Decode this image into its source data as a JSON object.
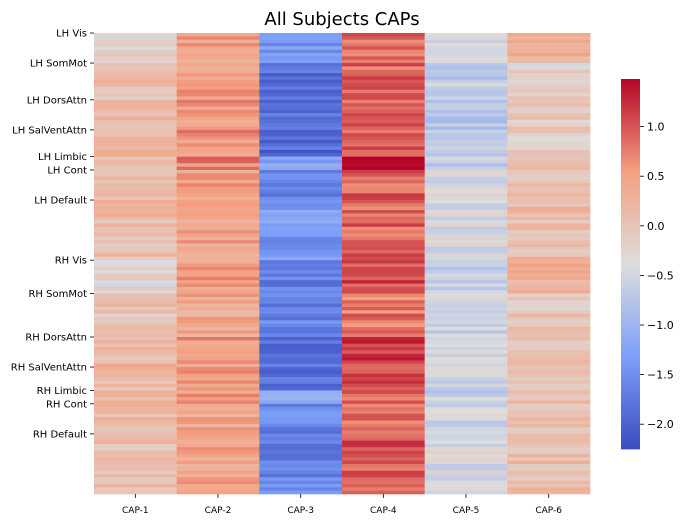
{
  "chart_data": {
    "type": "heatmap",
    "title": "All Subjects CAPs",
    "xlabel": "",
    "ylabel": "",
    "columns": [
      "CAP-1",
      "CAP-2",
      "CAP-3",
      "CAP-4",
      "CAP-5",
      "CAP-6"
    ],
    "row_groups": [
      {
        "label": "LH Vis",
        "start_row": 0,
        "values": [
          -0.3,
          0.5,
          -1.4,
          0.8,
          -0.45,
          0.3
        ]
      },
      {
        "label": "LH SomMot",
        "start_row": 9,
        "values": [
          0.1,
          0.5,
          -1.8,
          0.9,
          -0.7,
          -0.2
        ]
      },
      {
        "label": "LH DorsAttn",
        "start_row": 20,
        "values": [
          0.2,
          0.6,
          -1.9,
          1.0,
          -0.7,
          -0.1
        ]
      },
      {
        "label": "LH SalVentAttn",
        "start_row": 29,
        "values": [
          0.15,
          0.6,
          -1.9,
          0.9,
          -0.6,
          -0.2
        ]
      },
      {
        "label": "LH Limbic",
        "start_row": 37,
        "values": [
          0.1,
          0.7,
          -1.3,
          1.3,
          -0.6,
          0.0
        ]
      },
      {
        "label": "LH Cont",
        "start_row": 41,
        "values": [
          0.1,
          0.5,
          -1.6,
          0.9,
          -0.4,
          0.05
        ]
      },
      {
        "label": "LH Default",
        "start_row": 50,
        "values": [
          0.1,
          0.45,
          -1.4,
          0.9,
          -0.4,
          0.1
        ]
      },
      {
        "label": "RH Vis",
        "start_row": 68,
        "values": [
          -0.3,
          0.5,
          -1.7,
          1.1,
          -0.6,
          0.3
        ]
      },
      {
        "label": "RH SomMot",
        "start_row": 78,
        "values": [
          0.0,
          0.4,
          -1.6,
          0.8,
          -0.55,
          0.0
        ]
      },
      {
        "label": "RH DorsAttn",
        "start_row": 91,
        "values": [
          0.2,
          0.6,
          -1.9,
          1.1,
          -0.6,
          -0.05
        ]
      },
      {
        "label": "RH SalVentAttn",
        "start_row": 100,
        "values": [
          0.15,
          0.6,
          -1.9,
          1.0,
          -0.55,
          -0.1
        ]
      },
      {
        "label": "RH Limbic",
        "start_row": 107,
        "values": [
          0.1,
          0.6,
          -1.2,
          0.9,
          -0.6,
          0.05
        ]
      },
      {
        "label": "RH Cont",
        "start_row": 111,
        "values": [
          0.1,
          0.45,
          -1.6,
          0.9,
          -0.45,
          0.05
        ]
      },
      {
        "label": "RH Default",
        "start_row": 120,
        "values": [
          0.1,
          0.45,
          -1.6,
          1.0,
          -0.4,
          0.1
        ]
      }
    ],
    "total_rows": 138,
    "colorbar": {
      "colormap": "coolwarm",
      "vmin": -2.25,
      "vmax": 1.48,
      "ticks": [
        1.0,
        0.5,
        0.0,
        -0.5,
        -1.0,
        -1.5,
        -2.0
      ],
      "tick_labels": [
        "1.0",
        "0.5",
        "0.0",
        "−0.5",
        "−1.0",
        "−1.5",
        "−2.0"
      ]
    }
  }
}
